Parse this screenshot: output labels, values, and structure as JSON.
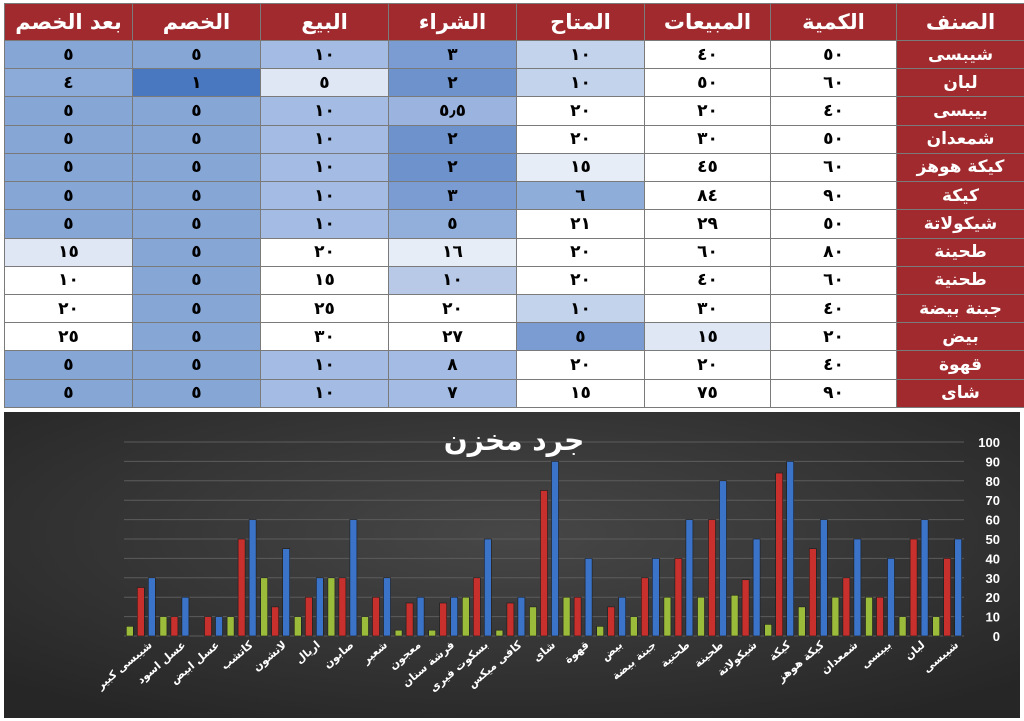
{
  "table": {
    "headers": [
      "الصنف",
      "الكمية",
      "المبيعات",
      "المتاح",
      "الشراء",
      "البيع",
      "الخصم",
      "بعد الخصم"
    ],
    "rows": [
      [
        "شيبسى",
        "٥٠",
        "٤٠",
        "١٠",
        "٣",
        "١٠",
        "٥",
        "٥"
      ],
      [
        "لبان",
        "٦٠",
        "٥٠",
        "١٠",
        "٢",
        "٥",
        "١",
        "٤"
      ],
      [
        "بيبسى",
        "٤٠",
        "٢٠",
        "٢٠",
        "٥٫٥",
        "١٠",
        "٥",
        "٥"
      ],
      [
        "شمعدان",
        "٥٠",
        "٣٠",
        "٢٠",
        "٢",
        "١٠",
        "٥",
        "٥"
      ],
      [
        "كيكة هوهز",
        "٦٠",
        "٤٥",
        "١٥",
        "٢",
        "١٠",
        "٥",
        "٥"
      ],
      [
        "كيكة",
        "٩٠",
        "٨٤",
        "٦",
        "٣",
        "١٠",
        "٥",
        "٥"
      ],
      [
        "شيكولاتة",
        "٥٠",
        "٢٩",
        "٢١",
        "٥",
        "١٠",
        "٥",
        "٥"
      ],
      [
        "طحينة",
        "٨٠",
        "٦٠",
        "٢٠",
        "١٦",
        "٢٠",
        "٥",
        "١٥"
      ],
      [
        "طحنية",
        "٦٠",
        "٤٠",
        "٢٠",
        "١٠",
        "١٥",
        "٥",
        "١٠"
      ],
      [
        "جبنة بيضة",
        "٤٠",
        "٣٠",
        "١٠",
        "٢٠",
        "٢٥",
        "٥",
        "٢٠"
      ],
      [
        "بيض",
        "٢٠",
        "١٥",
        "٥",
        "٢٧",
        "٣٠",
        "٥",
        "٢٥"
      ],
      [
        "قهوة",
        "٤٠",
        "٢٠",
        "٢٠",
        "٨",
        "١٠",
        "٥",
        "٥"
      ],
      [
        "شاى",
        "٩٠",
        "٧٥",
        "١٥",
        "٧",
        "١٠",
        "٥",
        "٥"
      ]
    ],
    "cell_colors": [
      [
        "#ffffff",
        "#ffffff",
        "#c3d3ec",
        "#7b9cd2",
        "#a4bce3",
        "#86a6d6",
        "#86a6d6"
      ],
      [
        "#ffffff",
        "#ffffff",
        "#c3d3ec",
        "#6d92cc",
        "#dfe7f5",
        "#4a78c0",
        "#8cabd9"
      ],
      [
        "#ffffff",
        "#ffffff",
        "#ffffff",
        "#9ab4df",
        "#a4bce3",
        "#86a6d6",
        "#86a6d6"
      ],
      [
        "#ffffff",
        "#ffffff",
        "#ffffff",
        "#6d92cc",
        "#a4bce3",
        "#86a6d6",
        "#86a6d6"
      ],
      [
        "#ffffff",
        "#ffffff",
        "#e6edf7",
        "#6d92cc",
        "#a4bce3",
        "#86a6d6",
        "#86a6d6"
      ],
      [
        "#ffffff",
        "#ffffff",
        "#8fadd9",
        "#7b9cd2",
        "#a4bce3",
        "#86a6d6",
        "#86a6d6"
      ],
      [
        "#ffffff",
        "#ffffff",
        "#ffffff",
        "#92afdb",
        "#a4bce3",
        "#86a6d6",
        "#86a6d6"
      ],
      [
        "#ffffff",
        "#ffffff",
        "#ffffff",
        "#e6edf7",
        "#ffffff",
        "#86a6d6",
        "#dfe7f5"
      ],
      [
        "#ffffff",
        "#ffffff",
        "#ffffff",
        "#b7c9e7",
        "#ffffff",
        "#86a6d6",
        "#ffffff"
      ],
      [
        "#ffffff",
        "#ffffff",
        "#c3d3ec",
        "#ffffff",
        "#ffffff",
        "#86a6d6",
        "#ffffff"
      ],
      [
        "#ffffff",
        "#dfe7f5",
        "#7b9cd2",
        "#ffffff",
        "#ffffff",
        "#86a6d6",
        "#ffffff"
      ],
      [
        "#ffffff",
        "#ffffff",
        "#ffffff",
        "#a4bce3",
        "#a4bce3",
        "#86a6d6",
        "#86a6d6"
      ],
      [
        "#ffffff",
        "#ffffff",
        "#ffffff",
        "#a4bce3",
        "#a4bce3",
        "#86a6d6",
        "#86a6d6"
      ]
    ]
  },
  "chart_data": {
    "type": "bar",
    "title": "جرد مخزن",
    "xlabel": "",
    "ylabel": "",
    "ylim": [
      0,
      100
    ],
    "ytick_step": 10,
    "y_axis_side": "right",
    "category_order": "right-to-left",
    "grid": true,
    "background": "#333333",
    "categories": [
      "شيبسى",
      "لبان",
      "بيبسى",
      "شمعدان",
      "كيكة هوهز",
      "كيكة",
      "شيكولاتة",
      "طحينة",
      "طحنية",
      "جبنة بيضة",
      "بيض",
      "قهوة",
      "شاى",
      "كافى ميكس",
      "بسكوت فيرى",
      "فرشة سنان",
      "معجون",
      "شعير",
      "صابون",
      "اريال",
      "لانشون",
      "كاتشب",
      "عسل ابيض",
      "عسل اسود",
      "شيبسى كبير"
    ],
    "series": [
      {
        "color": "#3b73c9",
        "values": [
          50,
          60,
          40,
          50,
          60,
          90,
          50,
          80,
          60,
          40,
          20,
          40,
          90,
          20,
          50,
          20,
          20,
          30,
          60,
          30,
          45,
          60,
          10,
          20,
          30
        ]
      },
      {
        "color": "#c8302e",
        "values": [
          40,
          50,
          20,
          30,
          45,
          84,
          29,
          60,
          40,
          30,
          15,
          20,
          75,
          17,
          30,
          17,
          17,
          20,
          30,
          20,
          15,
          50,
          10,
          10,
          25
        ]
      },
      {
        "color": "#9bbb3b",
        "values": [
          10,
          10,
          20,
          20,
          15,
          6,
          21,
          20,
          20,
          10,
          5,
          20,
          15,
          3,
          20,
          3,
          3,
          10,
          30,
          10,
          30,
          10,
          0,
          10,
          5
        ]
      }
    ]
  }
}
